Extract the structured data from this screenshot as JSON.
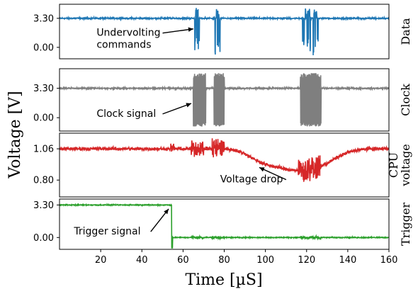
{
  "chart_data": {
    "type": "line",
    "xlabel": "Time [µS]",
    "ylabel": "Voltage [V]",
    "xlim": [
      0,
      160
    ],
    "xticks": [
      20,
      40,
      60,
      80,
      100,
      120,
      140,
      160
    ],
    "xtick_labels": [
      "20",
      "40",
      "60",
      "80",
      "100",
      "120",
      "140",
      "160"
    ],
    "panels": [
      {
        "id": "data",
        "side_label": [
          "Data"
        ],
        "color": "#1f77b4",
        "ylim": [
          -1.3,
          4.9
        ],
        "yticks": [
          0.0,
          3.3
        ],
        "ytick_labels": [
          "0.00",
          "3.30"
        ],
        "baseline": 3.3,
        "noise": 0.07,
        "dips": [
          {
            "x": [
              65.5,
              68.0
            ],
            "low": -0.9
          },
          {
            "x": [
              75.5,
              78.0
            ],
            "low": -0.9
          },
          {
            "x": [
              118.0,
              122.0
            ],
            "low": -0.9
          },
          {
            "x": [
              123.0,
              126.0
            ],
            "low": -0.9
          }
        ],
        "spikes": [
          {
            "x": [
              66.0,
              67.5
            ],
            "high": 4.7
          },
          {
            "x": [
              76.0,
              77.5
            ],
            "high": 4.5
          },
          {
            "x": [
              119.0,
              121.5
            ],
            "high": 4.5
          },
          {
            "x": [
              123.5,
              125.0
            ],
            "high": 4.3
          }
        ],
        "annotation": {
          "text": [
            "Undervolting",
            "commands"
          ],
          "text_x": 18,
          "text_y": 1.3,
          "arrow_to_x": 65,
          "arrow_to_y": 2.1
        }
      },
      {
        "id": "clock",
        "side_label": [
          "Clock"
        ],
        "color": "#7f7f7f",
        "ylim": [
          -1.5,
          5.5
        ],
        "yticks": [
          0.0,
          3.3
        ],
        "ytick_labels": [
          "0.00",
          "3.30"
        ],
        "baseline": 3.3,
        "noise": 0.07,
        "bursts": [
          {
            "x": [
              65.0,
              71.0
            ],
            "low": -1.0,
            "high": 5.0
          },
          {
            "x": [
              75.0,
              80.0
            ],
            "low": -1.0,
            "high": 5.0
          },
          {
            "x": [
              117.0,
              127.0
            ],
            "low": -1.0,
            "high": 5.0
          }
        ],
        "annotation": {
          "text": [
            "Clock signal"
          ],
          "text_x": 18,
          "text_y": 0.1,
          "arrow_to_x": 64,
          "arrow_to_y": 1.6
        }
      },
      {
        "id": "cpu",
        "side_label": [
          "CPU",
          "voltage"
        ],
        "color": "#d62728",
        "ylim": [
          0.66,
          1.19
        ],
        "yticks": [
          0.8,
          1.06
        ],
        "ytick_labels": [
          "0.80",
          "1.06"
        ],
        "profile_x": [
          0,
          54,
          60,
          65,
          70,
          75,
          80,
          85,
          90,
          95,
          100,
          105,
          110,
          115,
          120,
          125,
          130,
          135,
          140,
          145,
          150,
          155,
          160
        ],
        "profile_y": [
          1.06,
          1.06,
          1.06,
          1.06,
          1.06,
          1.06,
          1.06,
          1.05,
          1.02,
          0.97,
          0.93,
          0.91,
          0.89,
          0.88,
          0.88,
          0.9,
          0.94,
          0.99,
          1.03,
          1.05,
          1.06,
          1.06,
          1.06
        ],
        "noise": 0.012,
        "disturbances": [
          {
            "x": [
              54.0,
              55.5
            ],
            "amp": 0.04
          },
          {
            "x": [
              64.0,
              70.0
            ],
            "amp": 0.06
          },
          {
            "x": [
              74.0,
              80.0
            ],
            "amp": 0.08
          },
          {
            "x": [
              116.0,
              127.0
            ],
            "amp": 0.09
          }
        ],
        "annotation": {
          "text": [
            "Voltage drop"
          ],
          "text_x": 78,
          "text_y": 0.78,
          "arrow_to_x": 97,
          "arrow_to_y": 0.905
        }
      },
      {
        "id": "trigger",
        "side_label": [
          "Trigger"
        ],
        "color": "#2ca02c",
        "ylim": [
          -1.2,
          3.9
        ],
        "yticks": [
          0.0,
          3.3
        ],
        "ytick_labels": [
          "0.00",
          "3.30"
        ],
        "high": 3.3,
        "low": 0.0,
        "edge_x": 54.5,
        "edge_undershoot": -1.05,
        "noise": 0.04,
        "bumps": [
          {
            "x": [
              64.0,
              70.0
            ],
            "amp": 0.12
          },
          {
            "x": [
              74.0,
              80.0
            ],
            "amp": 0.12
          },
          {
            "x": [
              117.0,
              127.0
            ],
            "amp": 0.12
          }
        ],
        "annotation": {
          "text": [
            "Trigger signal"
          ],
          "text_x": 7,
          "text_y": 0.3,
          "arrow_to_x": 53,
          "arrow_to_y": 2.9
        }
      }
    ]
  }
}
